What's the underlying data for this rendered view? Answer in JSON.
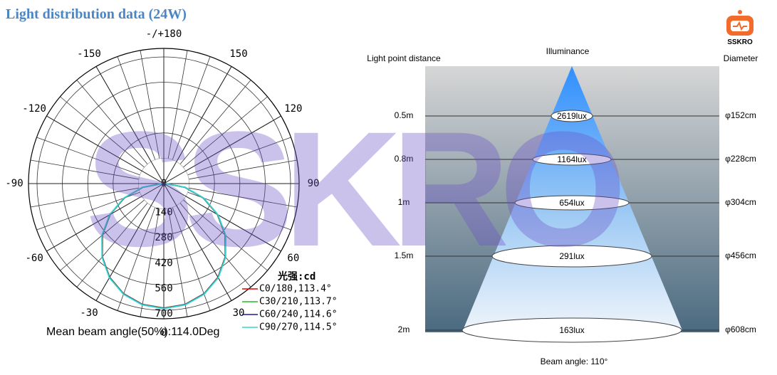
{
  "title": "Light distribution data (24W)",
  "brand": "SSKRO",
  "watermark": "SSKRO",
  "chart_data": {
    "type": "polar",
    "angle_ticks": [
      {
        "value": 180,
        "label": "-/+180"
      },
      150,
      120,
      90,
      60,
      30,
      0,
      -30,
      -60,
      -90,
      -120,
      -150
    ],
    "rlim": [
      0,
      700
    ],
    "rticks": [
      0,
      140,
      280,
      420,
      560,
      700
    ],
    "theta": [
      -90,
      -80,
      -70,
      -60,
      -50,
      -40,
      -30,
      -20,
      -10,
      0,
      10,
      20,
      30,
      40,
      50,
      60,
      70,
      80,
      90
    ],
    "legend_title": "光强:cd",
    "series": [
      {
        "name": "C0/180,113.4°",
        "color": "#e00000",
        "values": [
          10,
          118,
          232,
          342,
          442,
          528,
          598,
          648,
          678,
          688,
          678,
          648,
          598,
          528,
          442,
          342,
          232,
          118,
          10
        ]
      },
      {
        "name": "C30/210,113.7°",
        "color": "#22bb22",
        "values": [
          10,
          119,
          233,
          343,
          443,
          529,
          599,
          649,
          679,
          689,
          679,
          649,
          599,
          529,
          443,
          343,
          233,
          119,
          10
        ]
      },
      {
        "name": "C60/240,114.6°",
        "color": "#1a1aa0",
        "values": [
          10,
          120,
          234,
          345,
          445,
          530,
          600,
          650,
          680,
          690,
          680,
          650,
          600,
          530,
          445,
          345,
          234,
          120,
          10
        ]
      },
      {
        "name": "C90/270,114.5°",
        "color": "#33d6d0",
        "values": [
          10,
          121,
          235,
          346,
          446,
          531,
          601,
          651,
          681,
          691,
          681,
          651,
          601,
          531,
          446,
          346,
          235,
          121,
          10
        ]
      }
    ],
    "footer": "Mean beam angle(50%):114.0Deg"
  },
  "illuminance": {
    "distance_label": "Light point distance",
    "title": "Illuminance",
    "diameter_label": "Diameter",
    "footer": "Beam angle: 110°",
    "rows": [
      {
        "distance": "0.5m",
        "lux": "2619lux",
        "diameter": "φ152cm"
      },
      {
        "distance": "0.8m",
        "lux": "1164lux",
        "diameter": "φ228cm"
      },
      {
        "distance": "1m",
        "lux": "654lux",
        "diameter": "φ304cm"
      },
      {
        "distance": "1.5m",
        "lux": "291lux",
        "diameter": "φ456cm"
      },
      {
        "distance": "2m",
        "lux": "163lux",
        "diameter": "φ608cm"
      }
    ]
  }
}
